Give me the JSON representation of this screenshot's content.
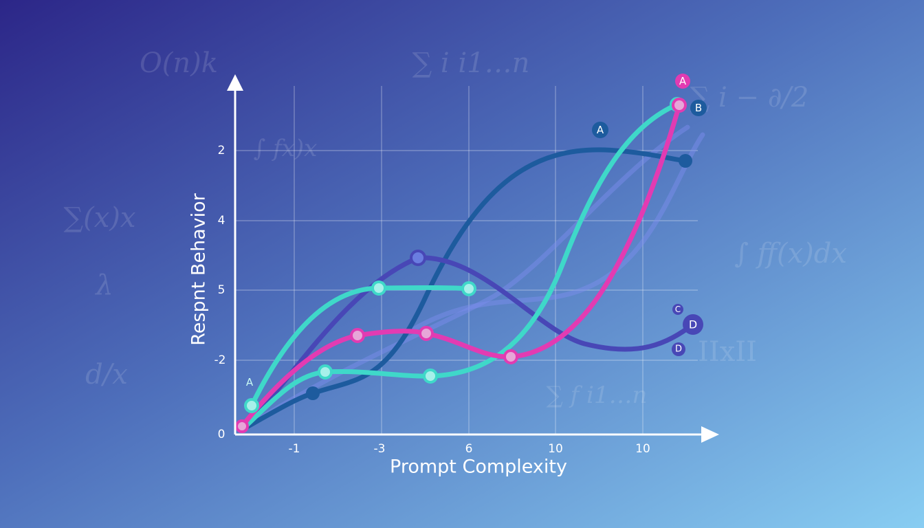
{
  "axes": {
    "x_label": "Prompt Complexity",
    "y_label": "Respnt Behavior",
    "x_tick_labels": [
      "-1",
      "-3",
      "6",
      "10",
      "10"
    ],
    "y_tick_labels": [
      "2",
      "4",
      "5",
      "-2",
      "0"
    ]
  },
  "annotations": [
    "A",
    "B",
    "A",
    "A",
    "C",
    "D",
    "D"
  ],
  "background_formulas": [
    "O(n)k",
    "∑ i i1…n",
    "∑ i − ∂/2",
    "∫ fx)x",
    "∑(x)x",
    "λ",
    "d/x",
    "∫ ff(x)dx",
    "IIxII",
    "∑ f i1…n"
  ]
}
